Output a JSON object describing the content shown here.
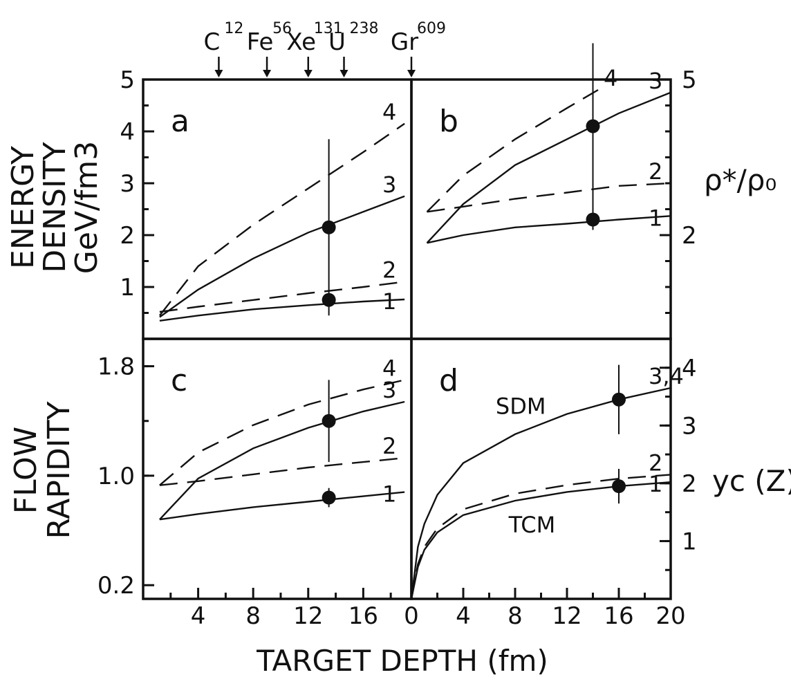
{
  "figure": {
    "xlabel": "TARGET DEPTH (fm)",
    "ylabel_top": [
      "ENERGY",
      "DENSITY",
      "GeV/fm3"
    ],
    "ylabel_bottom": [
      "FLOW",
      "RAPIDITY"
    ],
    "right_label_top": "ρ*/ρ₀",
    "right_label_bottom": "yc (Z)"
  },
  "nuclei": [
    {
      "symbol": "C",
      "mass": "12",
      "depth": 5.5
    },
    {
      "symbol": "Fe",
      "mass": "56",
      "depth": 9
    },
    {
      "symbol": "Xe",
      "mass": "131",
      "depth": 12
    },
    {
      "symbol": "U",
      "mass": "238",
      "depth": 14.6
    },
    {
      "symbol": "Gr",
      "mass": "609",
      "depth": 19.5
    }
  ],
  "chart_data": [
    {
      "panel": "a",
      "type": "line",
      "xlim": [
        0,
        19.5
      ],
      "ylim": [
        0,
        5
      ],
      "xticks": [
        "4",
        "8",
        "12",
        "16"
      ],
      "yticks": [
        "1",
        "2",
        "3",
        "4",
        "5"
      ],
      "series": [
        {
          "name": "1",
          "style": "solid",
          "x": [
            1.2,
            4,
            8,
            12,
            16,
            19
          ],
          "y": [
            0.35,
            0.45,
            0.57,
            0.65,
            0.72,
            0.76
          ]
        },
        {
          "name": "2",
          "style": "dashed",
          "x": [
            1.2,
            4,
            8,
            12,
            16,
            19
          ],
          "y": [
            0.52,
            0.62,
            0.75,
            0.88,
            1.0,
            1.1
          ]
        },
        {
          "name": "3",
          "style": "solid",
          "x": [
            1.2,
            4,
            8,
            12,
            16,
            19
          ],
          "y": [
            0.42,
            0.95,
            1.55,
            2.05,
            2.45,
            2.75
          ]
        },
        {
          "name": "4",
          "style": "dashed",
          "x": [
            1.2,
            4,
            8,
            12,
            16,
            19
          ],
          "y": [
            0.45,
            1.4,
            2.2,
            2.9,
            3.6,
            4.15
          ]
        }
      ],
      "points": [
        {
          "x": 13.5,
          "y": 0.75,
          "err": 0.12
        },
        {
          "x": 13.5,
          "y": 2.15,
          "err": 1.7
        }
      ]
    },
    {
      "panel": "b",
      "type": "line",
      "xlim": [
        0,
        20
      ],
      "ylim": [
        0,
        5
      ],
      "right_ticks": [
        "2",
        "5"
      ],
      "series": [
        {
          "name": "1",
          "style": "solid",
          "x": [
            1.2,
            4,
            8,
            12,
            16,
            20
          ],
          "y": [
            1.85,
            2.0,
            2.15,
            2.22,
            2.3,
            2.37
          ]
        },
        {
          "name": "2",
          "style": "dashed",
          "x": [
            1.2,
            4,
            8,
            12,
            16,
            20
          ],
          "y": [
            2.45,
            2.55,
            2.7,
            2.82,
            2.95,
            3.0
          ]
        },
        {
          "name": "3",
          "style": "solid",
          "x": [
            1.2,
            4,
            8,
            12,
            16,
            20
          ],
          "y": [
            1.85,
            2.6,
            3.35,
            3.85,
            4.35,
            4.75
          ]
        },
        {
          "name": "4",
          "style": "dashed",
          "x": [
            1.2,
            4,
            8,
            12,
            14.4
          ],
          "y": [
            2.45,
            3.15,
            3.85,
            4.45,
            4.8
          ]
        }
      ],
      "points": [
        {
          "x": 14,
          "y": 2.3,
          "err": 0.2
        },
        {
          "x": 14,
          "y": 4.1,
          "err": 1.6
        }
      ]
    },
    {
      "panel": "c",
      "type": "line",
      "xlim": [
        0,
        19.5
      ],
      "ylim": [
        0.1,
        2.0
      ],
      "yticks": [
        "0.2",
        "1.0",
        "1.8"
      ],
      "series": [
        {
          "name": "1",
          "style": "solid",
          "x": [
            1.2,
            4,
            8,
            12,
            16,
            19
          ],
          "y": [
            0.68,
            0.72,
            0.77,
            0.81,
            0.85,
            0.88
          ]
        },
        {
          "name": "2",
          "style": "dashed",
          "x": [
            1.2,
            4,
            8,
            12,
            16,
            19
          ],
          "y": [
            0.93,
            0.96,
            1.01,
            1.06,
            1.1,
            1.13
          ]
        },
        {
          "name": "3",
          "style": "solid",
          "x": [
            1.2,
            4,
            8,
            12,
            16,
            19
          ],
          "y": [
            0.68,
            0.98,
            1.2,
            1.35,
            1.47,
            1.54
          ]
        },
        {
          "name": "4",
          "style": "dashed",
          "x": [
            1.2,
            4,
            8,
            12,
            16,
            19
          ],
          "y": [
            0.93,
            1.17,
            1.37,
            1.52,
            1.63,
            1.7
          ]
        }
      ],
      "points": [
        {
          "x": 13.5,
          "y": 0.84,
          "err": 0.07
        },
        {
          "x": 13.5,
          "y": 1.4,
          "err": 0.3
        }
      ]
    },
    {
      "panel": "d",
      "type": "line",
      "xlim": [
        0,
        20
      ],
      "ylim": [
        0,
        4.5
      ],
      "xticks": [
        "0",
        "4",
        "8",
        "12",
        "16",
        "20"
      ],
      "right_ticks": [
        "1",
        "2",
        "3",
        "4"
      ],
      "annotations": [
        "SDM",
        "TCM"
      ],
      "series": [
        {
          "name": "1",
          "style": "solid",
          "x": [
            0,
            0.5,
            1,
            2,
            4,
            8,
            12,
            16,
            20
          ],
          "y": [
            0,
            0.55,
            0.85,
            1.15,
            1.45,
            1.7,
            1.85,
            1.95,
            2.02
          ]
        },
        {
          "name": "2",
          "style": "dashed",
          "x": [
            0,
            0.5,
            1,
            2,
            4,
            8,
            12,
            16,
            20
          ],
          "y": [
            0,
            0.6,
            0.9,
            1.22,
            1.55,
            1.82,
            1.97,
            2.08,
            2.15
          ]
        },
        {
          "name": "3,4",
          "style": "solid",
          "x": [
            0,
            0.5,
            1,
            2,
            4,
            8,
            12,
            16,
            20
          ],
          "y": [
            0,
            0.9,
            1.3,
            1.8,
            2.35,
            2.85,
            3.2,
            3.45,
            3.65
          ]
        }
      ],
      "points": [
        {
          "x": 16,
          "y": 1.95,
          "err": 0.3
        },
        {
          "x": 16,
          "y": 3.45,
          "err": 0.6
        }
      ]
    }
  ]
}
